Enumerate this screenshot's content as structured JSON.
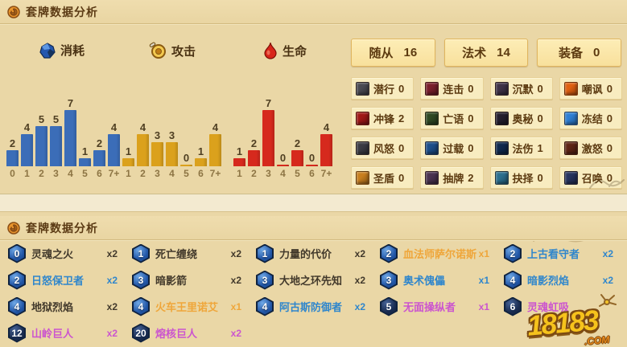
{
  "sections": {
    "top_title": "套牌数据分析",
    "bottom_title": "套牌数据分析"
  },
  "chart_data": [
    {
      "type": "bar",
      "name": "cost",
      "title": "消耗",
      "icon": "mana-gem-icon",
      "color": "#3b6db8",
      "categories": [
        "0",
        "1",
        "2",
        "3",
        "4",
        "5",
        "6",
        "7+"
      ],
      "values": [
        2,
        4,
        5,
        5,
        7,
        1,
        2,
        4
      ],
      "ylim": [
        0,
        7
      ],
      "grid": false
    },
    {
      "type": "bar",
      "name": "attack",
      "title": "攻击",
      "icon": "attack-icon",
      "color": "#dba11c",
      "categories": [
        "1",
        "2",
        "3",
        "4",
        "5",
        "6",
        "7+"
      ],
      "values": [
        1,
        4,
        3,
        3,
        0,
        1,
        4
      ],
      "ylim": [
        0,
        7
      ],
      "grid": false
    },
    {
      "type": "bar",
      "name": "health",
      "title": "生命",
      "icon": "health-icon",
      "color": "#d6291d",
      "categories": [
        "1",
        "2",
        "3",
        "4",
        "5",
        "6",
        "7+"
      ],
      "values": [
        1,
        2,
        7,
        0,
        2,
        0,
        4
      ],
      "ylim": [
        0,
        7
      ],
      "grid": false
    }
  ],
  "card_types": [
    {
      "key": "minions",
      "label": "随从",
      "count": "16"
    },
    {
      "key": "spells",
      "label": "法术",
      "count": "14"
    },
    {
      "key": "weapons",
      "label": "装备",
      "count": "0"
    }
  ],
  "keywords": [
    {
      "key": "stealth",
      "label": "潜行",
      "count": "0",
      "icon": "stealth-icon",
      "color": "#4a4a52"
    },
    {
      "key": "combo",
      "label": "连击",
      "count": "0",
      "icon": "combo-icon",
      "color": "#7a1f2b"
    },
    {
      "key": "silence",
      "label": "沉默",
      "count": "0",
      "icon": "silence-icon",
      "color": "#3f3347"
    },
    {
      "key": "taunt",
      "label": "嘲讽",
      "count": "0",
      "icon": "taunt-icon",
      "color": "#e06010"
    },
    {
      "key": "charge",
      "label": "冲锋",
      "count": "2",
      "icon": "charge-icon",
      "color": "#a01816"
    },
    {
      "key": "deathrattle",
      "label": "亡语",
      "count": "0",
      "icon": "deathrattle-icon",
      "color": "#2f4a23"
    },
    {
      "key": "secret",
      "label": "奥秘",
      "count": "0",
      "icon": "secret-icon",
      "color": "#241f2e"
    },
    {
      "key": "freeze",
      "label": "冻结",
      "count": "0",
      "icon": "freeze-icon",
      "color": "#2e7fd4"
    },
    {
      "key": "windfury",
      "label": "风怒",
      "count": "0",
      "icon": "windfury-icon",
      "color": "#3c3c44"
    },
    {
      "key": "overload",
      "label": "过载",
      "count": "0",
      "icon": "overload-icon",
      "color": "#1d4f8a"
    },
    {
      "key": "spell-damage",
      "label": "法伤",
      "count": "1",
      "icon": "spell-damage-icon",
      "color": "#102a4e"
    },
    {
      "key": "enrage",
      "label": "激怒",
      "count": "0",
      "icon": "enrage-icon",
      "color": "#5e2414"
    },
    {
      "key": "divine-shield",
      "label": "圣盾",
      "count": "0",
      "icon": "divine-shield-icon",
      "color": "#c87f1e"
    },
    {
      "key": "draw",
      "label": "抽牌",
      "count": "2",
      "icon": "draw-card-icon",
      "color": "#4a3350"
    },
    {
      "key": "choose",
      "label": "抉择",
      "count": "0",
      "icon": "choose-one-icon",
      "color": "#2b6f8e"
    },
    {
      "key": "summon",
      "label": "召唤",
      "count": "0",
      "icon": "summon-icon",
      "color": "#27345e"
    }
  ],
  "cards": [
    {
      "cost": "0",
      "name": "灵魂之火",
      "count": "x2",
      "rarity": "common"
    },
    {
      "cost": "1",
      "name": "死亡缠绕",
      "count": "x2",
      "rarity": "common"
    },
    {
      "cost": "1",
      "name": "力量的代价",
      "count": "x2",
      "rarity": "common"
    },
    {
      "cost": "2",
      "name": "血法师萨尔诺斯",
      "count": "x1",
      "rarity": "legendary"
    },
    {
      "cost": "2",
      "name": "上古看守者",
      "count": "x2",
      "rarity": "rare"
    },
    {
      "cost": "2",
      "name": "日怒保卫者",
      "count": "x2",
      "rarity": "rare"
    },
    {
      "cost": "3",
      "name": "暗影箭",
      "count": "x2",
      "rarity": "common"
    },
    {
      "cost": "3",
      "name": "大地之环先知",
      "count": "x2",
      "rarity": "common"
    },
    {
      "cost": "3",
      "name": "奥术傀儡",
      "count": "x1",
      "rarity": "rare"
    },
    {
      "cost": "4",
      "name": "暗影烈焰",
      "count": "x2",
      "rarity": "rare"
    },
    {
      "cost": "4",
      "name": "地狱烈焰",
      "count": "x2",
      "rarity": "common"
    },
    {
      "cost": "4",
      "name": "火车王里诺艾",
      "count": "x1",
      "rarity": "legendary"
    },
    {
      "cost": "4",
      "name": "阿古斯防御者",
      "count": "x2",
      "rarity": "rare"
    },
    {
      "cost": "5",
      "name": "无面操纵者",
      "count": "x1",
      "rarity": "epic"
    },
    {
      "cost": "6",
      "name": "灵魂虹吸",
      "count": "",
      "rarity": "epic"
    },
    {
      "cost": "12",
      "name": "山岭巨人",
      "count": "x2",
      "rarity": "epic"
    },
    {
      "cost": "20",
      "name": "熔核巨人",
      "count": "x2",
      "rarity": "epic"
    }
  ],
  "rarity_colors": {
    "common": "#42392b",
    "rare": "#2f86cc",
    "epic": "#cb54cf",
    "legendary": "#efa63a"
  },
  "watermark": {
    "text": "18183",
    "suffix": ".COM"
  }
}
